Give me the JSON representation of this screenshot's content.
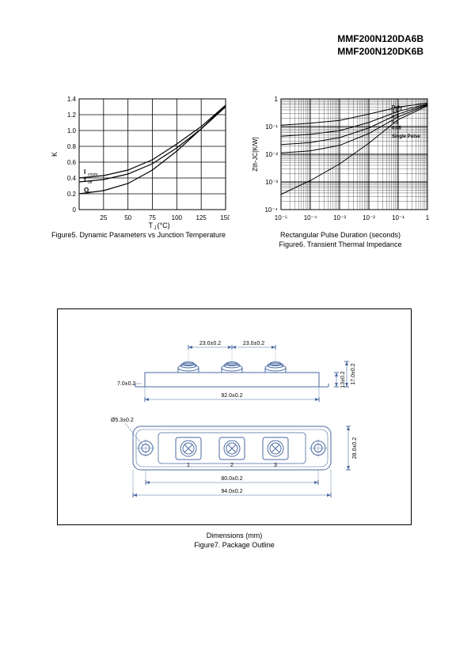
{
  "header": {
    "part1": "MMF200N120DA6B",
    "part2": "MMF200N120DK6B"
  },
  "figure5": {
    "title": "Figure5. Dynamic Parameters vs Junction Temperature",
    "xlabel": "T",
    "xlabel_sub": "J",
    "xunit": " (°C)",
    "ylabel": "K",
    "ylabel_sub": "v",
    "xlim": [
      0,
      150
    ],
    "ylim": [
      0,
      1.4
    ],
    "xtick_labels": [
      "25",
      "50",
      "75",
      "100",
      "125",
      "150"
    ],
    "ytick_labels": [
      "0",
      "0.2",
      "0.4",
      "0.6",
      "0.8",
      "1.0",
      "1.2",
      "1.4"
    ],
    "grid_color": "#000000",
    "line_color": "#000000",
    "background": "#ffffff",
    "series": [
      {
        "name": "Icnom",
        "label": "I",
        "label_sub": "cnom",
        "data": [
          [
            0,
            0.4
          ],
          [
            25,
            0.43
          ],
          [
            50,
            0.5
          ],
          [
            75,
            0.63
          ],
          [
            100,
            0.83
          ],
          [
            125,
            1.05
          ],
          [
            150,
            1.32
          ]
        ]
      },
      {
        "name": "toff",
        "label": "t",
        "label_sub": "off",
        "data": [
          [
            0,
            0.35
          ],
          [
            25,
            0.38
          ],
          [
            50,
            0.45
          ],
          [
            75,
            0.58
          ],
          [
            100,
            0.78
          ],
          [
            125,
            1.02
          ],
          [
            150,
            1.3
          ]
        ]
      },
      {
        "name": "Qrr",
        "label": "Q",
        "label_sub": "rr",
        "data": [
          [
            0,
            0.2
          ],
          [
            25,
            0.24
          ],
          [
            50,
            0.33
          ],
          [
            75,
            0.5
          ],
          [
            100,
            0.74
          ],
          [
            125,
            1.02
          ],
          [
            150,
            1.32
          ]
        ]
      }
    ]
  },
  "figure6": {
    "title": "Figure6. Transient Thermal Impedance",
    "xlabel": "Rectangular Pulse Duration (seconds)",
    "ylabel": "Z",
    "ylabel_sub": "th-JC",
    "yunit": "[K/W]",
    "xlim_exp": [
      -5,
      0
    ],
    "ylim_exp": [
      -4,
      0
    ],
    "xtick_labels": [
      "10⁻⁵",
      "10⁻⁴",
      "10⁻³",
      "10⁻²",
      "10⁻¹",
      "1"
    ],
    "ytick_labels": [
      "10⁻⁴",
      "10⁻³",
      "10⁻²",
      "10⁻¹",
      "1"
    ],
    "grid_color": "#000000",
    "line_color": "#000000",
    "background": "#ffffff",
    "duty_label": "Duty",
    "duty_values": [
      "0.5",
      "0.2",
      "0.1",
      "0.05",
      "Single Pulse"
    ],
    "series": [
      {
        "name": "d05",
        "data": [
          [
            -5,
            -0.95
          ],
          [
            -4,
            -0.88
          ],
          [
            -3,
            -0.78
          ],
          [
            -2,
            -0.55
          ],
          [
            -1,
            -0.3
          ],
          [
            0,
            -0.15
          ]
        ]
      },
      {
        "name": "d02",
        "data": [
          [
            -5,
            -1.35
          ],
          [
            -4,
            -1.28
          ],
          [
            -3,
            -1.15
          ],
          [
            -2,
            -0.85
          ],
          [
            -1,
            -0.45
          ],
          [
            0,
            -0.18
          ]
        ]
      },
      {
        "name": "d01",
        "data": [
          [
            -5,
            -1.65
          ],
          [
            -4,
            -1.58
          ],
          [
            -3,
            -1.4
          ],
          [
            -2,
            -1.05
          ],
          [
            -1,
            -0.55
          ],
          [
            0,
            -0.2
          ]
        ]
      },
      {
        "name": "d005",
        "data": [
          [
            -5,
            -1.95
          ],
          [
            -4,
            -1.88
          ],
          [
            -3,
            -1.68
          ],
          [
            -2,
            -1.25
          ],
          [
            -1,
            -0.65
          ],
          [
            0,
            -0.22
          ]
        ]
      },
      {
        "name": "single",
        "data": [
          [
            -5,
            -3.45
          ],
          [
            -4,
            -2.95
          ],
          [
            -3,
            -2.35
          ],
          [
            -2,
            -1.6
          ],
          [
            -1,
            -0.75
          ],
          [
            0,
            -0.25
          ]
        ]
      }
    ]
  },
  "figure7": {
    "title_line1": "Dimensions (mm)",
    "title_line2": "Figure7. Package Outline",
    "line_color": "#4a6aa0",
    "dims": {
      "pitch1": "23.0±0.2",
      "pitch2": "23.0±0.2",
      "height_total": "17.0±0.2",
      "height_body": "13±0.2",
      "height_bottom": "7.0±0.2",
      "body_width": "92.0±0.2",
      "hole_dia": "Ø5.3±0.2",
      "depth": "28.0±0.2",
      "mount_pitch": "80.0±0.2",
      "overall_width": "94.0±0.2",
      "term1": "1",
      "term2": "2",
      "term3": "3"
    }
  }
}
